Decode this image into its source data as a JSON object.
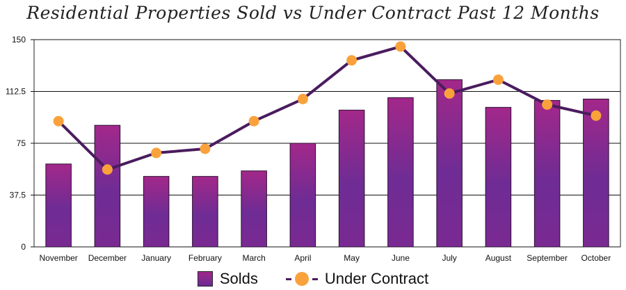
{
  "chart_data": {
    "type": "bar",
    "title": "Residential Properties Sold vs Under Contract Past 12 Months",
    "categories": [
      "November",
      "December",
      "January",
      "February",
      "March",
      "April",
      "May",
      "June",
      "July",
      "August",
      "September",
      "October"
    ],
    "series": [
      {
        "name": "Solds",
        "type": "bar",
        "values": [
          60,
          88,
          51,
          51,
          55,
          75,
          99,
          108,
          121,
          101,
          106,
          107
        ],
        "color": "#8b2a8f"
      },
      {
        "name": "Under Contract",
        "type": "line",
        "values": [
          91,
          56,
          68,
          71,
          91,
          107,
          135,
          145,
          111,
          121,
          103,
          95
        ],
        "color": "#f9a23c",
        "line_color": "#4a1c5e"
      }
    ],
    "ylim": [
      0,
      150
    ],
    "yticks": [
      "0",
      "37.5",
      "75",
      "112.5",
      "150"
    ],
    "grid": true,
    "legend_position": "bottom"
  }
}
